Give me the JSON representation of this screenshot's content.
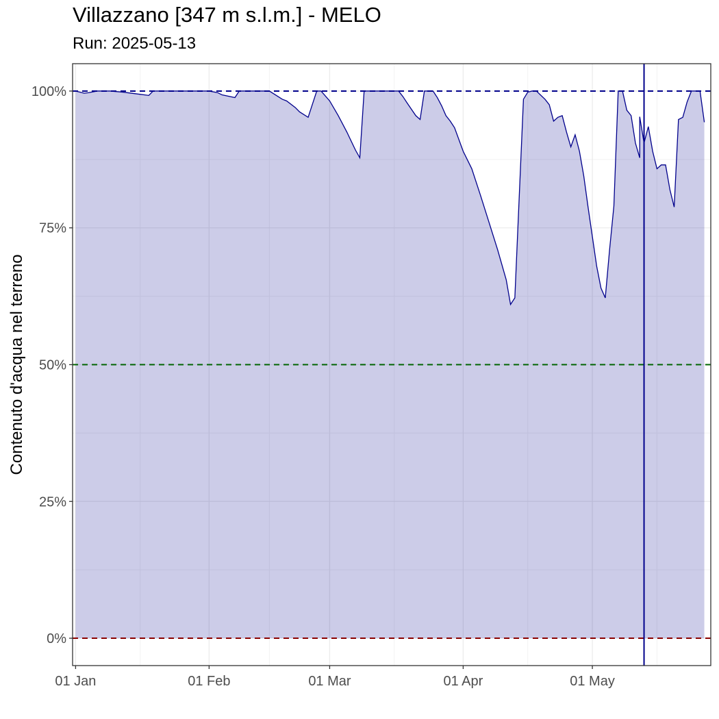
{
  "title": "Villazzano [347 m s.l.m.] - MELO",
  "subtitle": "Run: 2025-05-13",
  "chart_data": {
    "type": "area",
    "title": "Villazzano [347 m s.l.m.] - MELO",
    "subtitle": "Run: 2025-05-13",
    "xlabel": "",
    "ylabel": "Contenuto d'acqua nel terreno",
    "x_ticks": [
      "01 Jan",
      "01 Feb",
      "01 Mar",
      "01 Apr",
      "01 May"
    ],
    "y_ticks": [
      "0%",
      "25%",
      "50%",
      "75%",
      "100%"
    ],
    "xlim": [
      "2025-01-01",
      "2025-05-28"
    ],
    "ylim": [
      -0.05,
      1.05
    ],
    "grid": true,
    "reference_lines": [
      {
        "value": 1.0,
        "color": "#00008b",
        "style": "dashed"
      },
      {
        "value": 0.5,
        "color": "#006400",
        "style": "dashed"
      },
      {
        "value": 0.0,
        "color": "#8b0000",
        "style": "dashed"
      }
    ],
    "vertical_line": {
      "x": "2025-05-13",
      "color": "#00008b"
    },
    "colors": {
      "line": "#00008b",
      "fill": "#ccccE8",
      "grid_major": "#ebebeb"
    },
    "series": [
      {
        "values": [
          [
            "2025-01-01",
            1.0
          ],
          [
            "2025-01-03",
            0.996
          ],
          [
            "2025-01-04",
            0.997
          ],
          [
            "2025-01-06",
            1.0
          ],
          [
            "2025-01-09",
            1.0
          ],
          [
            "2025-01-12",
            0.998
          ],
          [
            "2025-01-15",
            0.995
          ],
          [
            "2025-01-18",
            0.992
          ],
          [
            "2025-01-19",
            1.0
          ],
          [
            "2025-01-23",
            1.0
          ],
          [
            "2025-01-27",
            1.0
          ],
          [
            "2025-01-31",
            1.0
          ],
          [
            "2025-02-01",
            1.0
          ],
          [
            "2025-02-03",
            0.997
          ],
          [
            "2025-02-04",
            0.993
          ],
          [
            "2025-02-07",
            0.988
          ],
          [
            "2025-02-08",
            1.0
          ],
          [
            "2025-02-11",
            1.0
          ],
          [
            "2025-02-15",
            1.0
          ],
          [
            "2025-02-17",
            0.99
          ],
          [
            "2025-02-18",
            0.985
          ],
          [
            "2025-02-19",
            0.982
          ],
          [
            "2025-02-21",
            0.97
          ],
          [
            "2025-02-22",
            0.962
          ],
          [
            "2025-02-24",
            0.952
          ],
          [
            "2025-02-26",
            1.0
          ],
          [
            "2025-02-27",
            1.0
          ],
          [
            "2025-03-01",
            0.982
          ],
          [
            "2025-03-03",
            0.955
          ],
          [
            "2025-03-05",
            0.925
          ],
          [
            "2025-03-07",
            0.892
          ],
          [
            "2025-03-08",
            0.878
          ],
          [
            "2025-03-09",
            1.0
          ],
          [
            "2025-03-13",
            1.0
          ],
          [
            "2025-03-17",
            1.0
          ],
          [
            "2025-03-18",
            0.99
          ],
          [
            "2025-03-19",
            0.978
          ],
          [
            "2025-03-21",
            0.955
          ],
          [
            "2025-03-22",
            0.948
          ],
          [
            "2025-03-23",
            1.0
          ],
          [
            "2025-03-25",
            1.0
          ],
          [
            "2025-03-26",
            0.988
          ],
          [
            "2025-03-27",
            0.973
          ],
          [
            "2025-03-28",
            0.955
          ],
          [
            "2025-03-29",
            0.945
          ],
          [
            "2025-03-30",
            0.933
          ],
          [
            "2025-04-01",
            0.89
          ],
          [
            "2025-04-03",
            0.858
          ],
          [
            "2025-04-05",
            0.81
          ],
          [
            "2025-04-07",
            0.76
          ],
          [
            "2025-04-09",
            0.71
          ],
          [
            "2025-04-11",
            0.655
          ],
          [
            "2025-04-12",
            0.61
          ],
          [
            "2025-04-13",
            0.622
          ],
          [
            "2025-04-15",
            0.985
          ],
          [
            "2025-04-16",
            0.998
          ],
          [
            "2025-04-17",
            1.0
          ],
          [
            "2025-04-18",
            1.0
          ],
          [
            "2025-04-20",
            0.985
          ],
          [
            "2025-04-21",
            0.975
          ],
          [
            "2025-04-22",
            0.945
          ],
          [
            "2025-04-23",
            0.952
          ],
          [
            "2025-04-24",
            0.955
          ],
          [
            "2025-04-25",
            0.925
          ],
          [
            "2025-04-26",
            0.898
          ],
          [
            "2025-04-27",
            0.92
          ],
          [
            "2025-04-28",
            0.89
          ],
          [
            "2025-04-29",
            0.845
          ],
          [
            "2025-04-30",
            0.788
          ],
          [
            "2025-05-02",
            0.68
          ],
          [
            "2025-05-03",
            0.64
          ],
          [
            "2025-05-04",
            0.622
          ],
          [
            "2025-05-05",
            0.71
          ],
          [
            "2025-05-06",
            0.79
          ],
          [
            "2025-05-07",
            1.0
          ],
          [
            "2025-05-08",
            1.0
          ],
          [
            "2025-05-09",
            0.965
          ],
          [
            "2025-05-10",
            0.955
          ],
          [
            "2025-05-11",
            0.905
          ],
          [
            "2025-05-12",
            0.878
          ],
          [
            "2025-05-12",
            0.953
          ],
          [
            "2025-05-13",
            0.905
          ],
          [
            "2025-05-14",
            0.935
          ],
          [
            "2025-05-15",
            0.89
          ],
          [
            "2025-05-16",
            0.858
          ],
          [
            "2025-05-17",
            0.865
          ],
          [
            "2025-05-18",
            0.865
          ],
          [
            "2025-05-19",
            0.82
          ],
          [
            "2025-05-20",
            0.788
          ],
          [
            "2025-05-21",
            0.948
          ],
          [
            "2025-05-22",
            0.952
          ],
          [
            "2025-05-23",
            0.98
          ],
          [
            "2025-05-24",
            1.0
          ],
          [
            "2025-05-26",
            1.0
          ],
          [
            "2025-05-27",
            0.943
          ]
        ]
      }
    ]
  }
}
